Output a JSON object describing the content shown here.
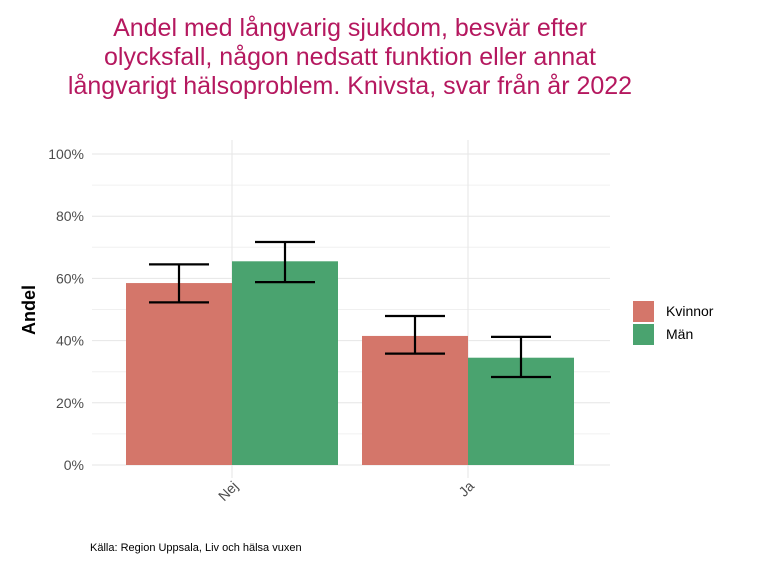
{
  "chart_data": {
    "type": "bar",
    "title": "Andel med långvarig sjukdom, besvär efter olycksfall, någon nedsatt funktion eller annat långvarigt hälsoproblem. Knivsta, svar från år 2022",
    "xlabel": "",
    "ylabel": "Andel",
    "categories": [
      "Nej",
      "Ja"
    ],
    "series": [
      {
        "name": "Kvinnor",
        "color": "#d4766a",
        "values": [
          58.5,
          41.5
        ],
        "error_low": [
          52.3,
          35.8
        ],
        "error_high": [
          64.5,
          47.9
        ]
      },
      {
        "name": "Män",
        "color": "#4aa36f",
        "values": [
          65.5,
          34.5
        ],
        "error_low": [
          58.8,
          28.3
        ],
        "error_high": [
          71.7,
          41.2
        ]
      }
    ],
    "ylim": [
      0,
      100
    ],
    "yticks": [
      0,
      20,
      40,
      60,
      80,
      100
    ],
    "ytick_labels": [
      "0%",
      "20%",
      "40%",
      "60%",
      "80%",
      "100%"
    ],
    "grid": true,
    "legend_position": "right",
    "source": "Källa: Region Uppsala, Liv och hälsa vuxen"
  }
}
